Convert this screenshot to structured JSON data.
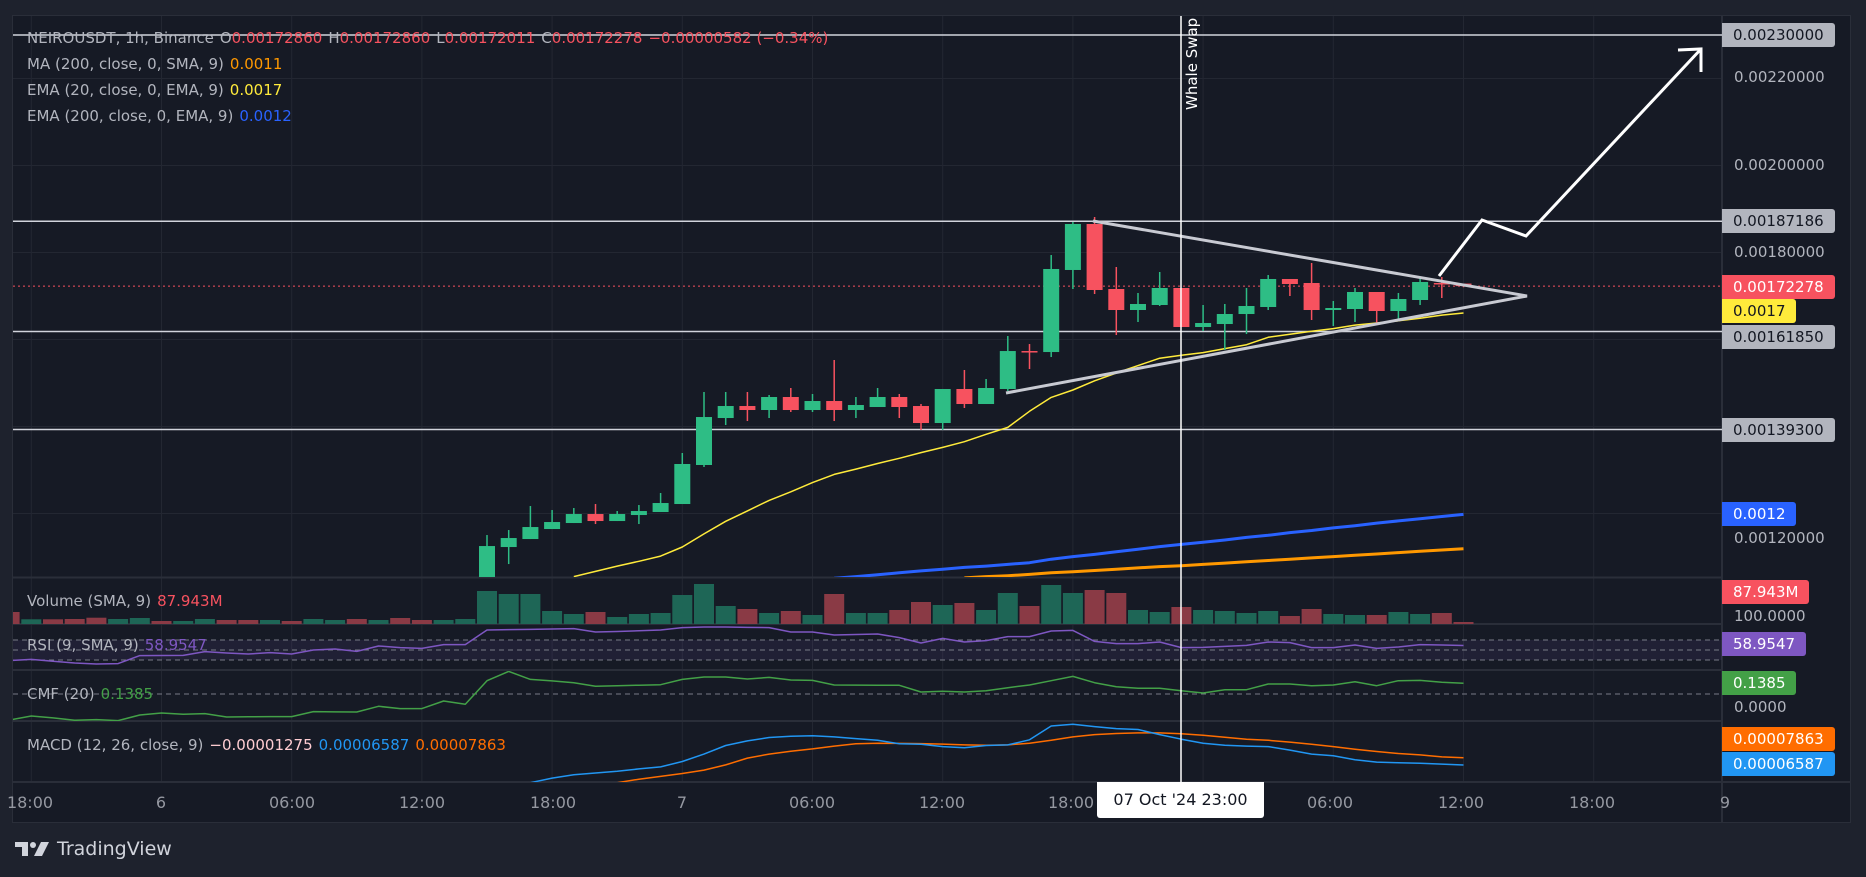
{
  "header": {
    "symbol": "NEIROUSDT, 1h, Binance",
    "o_label": "O",
    "o": "0.00172860",
    "h_label": "H",
    "h": "0.00172860",
    "l_label": "L",
    "l": "0.00172011",
    "c_label": "C",
    "c": "0.00172278",
    "change": "−0.00000582 (−0.34%)"
  },
  "indicators": {
    "ma200": {
      "label": "MA (200, close, 0, SMA, 9)",
      "value": "0.0011",
      "color": "#ff9800"
    },
    "ema20": {
      "label": "EMA (20, close, 0, EMA, 9)",
      "value": "0.0017",
      "color": "#ffeb3b"
    },
    "ema200": {
      "label": "EMA (200, close, 0, EMA, 9)",
      "value": "0.0012",
      "color": "#2962ff"
    },
    "volume": {
      "label": "Volume (SMA, 9)",
      "value": "87.943M"
    },
    "rsi": {
      "label": "RSI (9, SMA, 9)",
      "value": "58.9547",
      "color": "#7e57c2"
    },
    "cmf": {
      "label": "CMF (20)",
      "value": "0.1385",
      "color": "#43a047"
    },
    "macd": {
      "label": "MACD (12, 26, close, 9)",
      "hist": "−0.00001275",
      "macd": "0.00006587",
      "signal": "0.00007863",
      "macd_color": "#2196f3",
      "signal_color": "#ff6d00"
    }
  },
  "annotation": {
    "text": "Whale Swap"
  },
  "price_axis": {
    "ticks": [
      "0.00220000",
      "0.00200000",
      "0.00180000",
      "0.00120000"
    ],
    "rsi_tick": "100.0000",
    "cmf_tick": "0.0000",
    "badges": {
      "level_top": "0.00230000",
      "level_resistance": "0.00187186",
      "last_price": "0.00172278",
      "ema20": "0.0017",
      "level_support": "0.00161850",
      "level_low": "0.00139300",
      "ema200": "0.0012",
      "volume": "87.943M",
      "rsi": "58.9547",
      "cmf": "0.1385",
      "signal": "0.00007863",
      "macd": "0.00006587"
    }
  },
  "time_axis": {
    "ticks": [
      "18:00",
      "6",
      "06:00",
      "12:00",
      "18:00",
      "7",
      "06:00",
      "12:00",
      "18:00",
      "06:00",
      "12:00",
      "18:00",
      "9"
    ],
    "crosshair": "07 Oct '24   23:00"
  },
  "branding": {
    "name": "TradingView"
  },
  "colors": {
    "up": "#2ebd85",
    "down": "#f7525f",
    "vol_up": "#1e6656",
    "vol_down": "#8a3a45",
    "background": "#161a25"
  },
  "chart_data": {
    "type": "candlestick",
    "interval": "1h",
    "horizontal_levels": [
      0.0023,
      0.00187186,
      0.0016185,
      0.001393
    ],
    "last_price": 0.00172278,
    "price_range": [
      0.00105,
      0.00233
    ],
    "ohlc": [
      null,
      null,
      null,
      null,
      null,
      null,
      null,
      null,
      null,
      null,
      null,
      null,
      null,
      null,
      null,
      null,
      null,
      null,
      null,
      null,
      null,
      null,
      [
        0.00103,
        0.0011505,
        0.001025,
        0.0011252
      ],
      [
        0.0011229,
        0.001162,
        0.0010838,
        0.0011436
      ],
      [
        0.0011413,
        0.0012172,
        0.0011413,
        0.0011689
      ],
      [
        0.0011643,
        0.001208,
        0.0011643,
        0.0011804
      ],
      [
        0.0011781,
        0.0012126,
        0.0011781,
        0.0011988
      ],
      [
        0.0011988,
        0.0012218,
        0.0011758,
        0.0011827
      ],
      [
        0.0011827,
        0.0012057,
        0.0011827,
        0.0011988
      ],
      [
        0.0011965,
        0.0012195,
        0.0011758,
        0.0012057
      ],
      [
        0.0012034,
        0.0012471,
        0.0012034,
        0.0012241
      ],
      [
        0.0012218,
        0.0013391,
        0.0012218,
        0.0013138
      ],
      [
        0.0013115,
        0.0014793,
        0.0013069,
        0.0014218
      ],
      [
        0.0014195,
        0.0014793,
        0.0014034,
        0.0014471
      ],
      [
        0.0014471,
        0.0014793,
        0.0014126,
        0.0014379
      ],
      [
        0.0014379,
        0.0014724,
        0.0014195,
        0.0014678
      ],
      [
        0.0014678,
        0.0014885,
        0.0014333,
        0.0014379
      ],
      [
        0.0014379,
        0.0014747,
        0.0014333,
        0.0014586
      ],
      [
        0.0014586,
        0.0015529,
        0.0014126,
        0.0014379
      ],
      [
        0.0014379,
        0.0014678,
        0.0014195,
        0.0014494
      ],
      [
        0.0014448,
        0.0014885,
        0.0014448,
        0.0014678
      ],
      [
        0.0014678,
        0.0014747,
        0.0014195,
        0.0014448
      ],
      [
        0.0014471,
        0.0014517,
        0.001392,
        0.001408
      ],
      [
        0.001408,
        0.0014862,
        0.001392,
        0.0014862
      ],
      [
        0.0014862,
        0.0015299,
        0.0014425,
        0.0014517
      ],
      [
        0.0014517,
        0.0015092,
        0.0014517,
        0.0014885
      ],
      [
        0.0014862,
        0.001608,
        0.0014816,
        0.0015735
      ],
      [
        0.0015735,
        0.0015896,
        0.0015322,
        0.0015712
      ],
      [
        0.0015712,
        0.0017942,
        0.0015597,
        0.0017621
      ],
      [
        0.0017598,
        0.0018701,
        0.0017161,
        0.0018655
      ],
      [
        0.0018655,
        0.0018816,
        0.0017046,
        0.0017138
      ],
      [
        0.0017161,
        0.0017667,
        0.0016103,
        0.0016678
      ],
      [
        0.0016678,
        0.0017069,
        0.0016402,
        0.0016816
      ],
      [
        0.0016793,
        0.0017552,
        0.001677,
        0.0017184
      ],
      [
        0.0017184,
        0.0017184,
        0.0016287,
        0.0016287
      ],
      [
        0.0016287,
        0.0016793,
        0.0016195,
        0.0016379
      ],
      [
        0.0016356,
        0.0016816,
        0.0015758,
        0.0016586
      ],
      [
        0.0016586,
        0.0017184,
        0.0016126,
        0.001677
      ],
      [
        0.0016747,
        0.0017483,
        0.0016678,
        0.0017391
      ],
      [
        0.0017391,
        0.0017391,
        0.0017,
        0.0017276
      ],
      [
        0.0017299,
        0.0017759,
        0.0016448,
        0.0016678
      ],
      [
        0.0016678,
        0.0016885,
        0.001631,
        0.0016724
      ],
      [
        0.0016701,
        0.0017184,
        0.0016402,
        0.0017092
      ],
      [
        0.0017092,
        0.0017092,
        0.0016356,
        0.0016655
      ],
      [
        0.0016655,
        0.0017069,
        0.0016448,
        0.0016931
      ],
      [
        0.0016908,
        0.0017414,
        0.0016793,
        0.0017322
      ],
      [
        0.0017299,
        0.0017437,
        0.0016954,
        0.0017276
      ],
      [
        0.0017286,
        0.0017286,
        0.0017201,
        0.0017228
      ]
    ],
    "volume_millions": [
      528,
      207,
      207,
      220,
      277,
      220,
      264,
      132,
      132,
      220,
      176,
      176,
      176,
      132,
      220,
      176,
      220,
      176,
      264,
      176,
      176,
      220,
      1452,
      1320,
      1320,
      572,
      440,
      528,
      308,
      440,
      484,
      1276,
      1760,
      792,
      660,
      484,
      572,
      396,
      1320,
      484,
      484,
      616,
      968,
      836,
      924,
      616,
      1364,
      792,
      1716,
      1364,
      1496,
      1364,
      616,
      528,
      748,
      616,
      572,
      484,
      572,
      352,
      660,
      440,
      396,
      396,
      528,
      440,
      484,
      87.943
    ],
    "volume_up": [
      0,
      1,
      0,
      0,
      0,
      1,
      1,
      0,
      1,
      1,
      0,
      0,
      1,
      0,
      1,
      1,
      0,
      1,
      0,
      0,
      1,
      1,
      1,
      1,
      1,
      1,
      1,
      0,
      1,
      1,
      1,
      1,
      1,
      1,
      0,
      1,
      0,
      1,
      0,
      1,
      1,
      0,
      0,
      1,
      0,
      1,
      1,
      0,
      1,
      1,
      0,
      0,
      1,
      1,
      0,
      1,
      1,
      1,
      1,
      0,
      0,
      1,
      1,
      0,
      1,
      1,
      0,
      0
    ],
    "ema20": [
      null,
      null,
      null,
      null,
      null,
      null,
      null,
      null,
      null,
      null,
      null,
      null,
      null,
      null,
      null,
      null,
      null,
      null,
      null,
      null,
      null,
      null,
      null,
      null,
      null,
      null,
      0.001055,
      0.001067,
      0.001079,
      0.00109,
      0.001102,
      0.001123,
      0.001153,
      0.001182,
      0.001206,
      0.00123,
      0.00125,
      0.001271,
      0.00129,
      0.001302,
      0.001315,
      0.001327,
      0.00134,
      0.001352,
      0.001365,
      0.001382,
      0.001398,
      0.001435,
      0.001467,
      0.001484,
      0.001505,
      0.001523,
      0.00154,
      0.001557,
      0.001564,
      0.00157,
      0.001579,
      0.001588,
      0.001605,
      0.001612,
      0.001619,
      0.001625,
      0.001633,
      0.001638,
      0.001643,
      0.001649,
      0.001656,
      0.001661
    ],
    "ema200": [
      null,
      null,
      null,
      null,
      null,
      null,
      null,
      null,
      null,
      null,
      null,
      null,
      null,
      null,
      null,
      null,
      null,
      null,
      null,
      null,
      null,
      null,
      null,
      null,
      null,
      null,
      null,
      null,
      null,
      null,
      null,
      null,
      null,
      null,
      null,
      null,
      null,
      null,
      0.001051,
      0.001055,
      0.001059,
      0.001064,
      0.001068,
      0.001072,
      0.001076,
      0.001079,
      0.001083,
      0.001087,
      0.001095,
      0.001101,
      0.001106,
      0.001112,
      0.001118,
      0.001124,
      0.001129,
      0.001134,
      0.001139,
      0.001145,
      0.00115,
      0.001156,
      0.001161,
      0.001167,
      0.001172,
      0.001178,
      0.001183,
      0.001188,
      0.001193,
      0.001198
    ],
    "ma200": [
      null,
      null,
      null,
      null,
      null,
      null,
      null,
      null,
      null,
      null,
      null,
      null,
      null,
      null,
      null,
      null,
      null,
      null,
      null,
      null,
      null,
      null,
      null,
      null,
      null,
      null,
      null,
      null,
      null,
      null,
      null,
      null,
      null,
      null,
      null,
      null,
      null,
      null,
      null,
      null,
      null,
      null,
      null,
      null,
      0.001052,
      0.001055,
      0.001057,
      0.00106,
      0.001064,
      0.001066,
      0.001069,
      0.001072,
      0.001075,
      0.001078,
      0.00108,
      0.001083,
      0.001086,
      0.001089,
      0.001092,
      0.001095,
      0.001098,
      0.001101,
      0.001104,
      0.001107,
      0.00111,
      0.001113,
      0.001116,
      0.001119
    ],
    "rsi": [
      28.7,
      31.3,
      27.5,
      24,
      22,
      22.7,
      38.7,
      39,
      39.3,
      46.7,
      44,
      42,
      44.7,
      42,
      50,
      52,
      47.3,
      58,
      54.7,
      53.3,
      60.7,
      60.7,
      90,
      90.7,
      91.3,
      92,
      92.7,
      86,
      87,
      88.5,
      90,
      94.7,
      96,
      96,
      95.3,
      94.7,
      86,
      86,
      80,
      81,
      82,
      74.7,
      64,
      73.3,
      66,
      68.7,
      76.7,
      76.7,
      88,
      89.3,
      67.3,
      62.7,
      62.7,
      66,
      54.7,
      55.3,
      57.3,
      59.3,
      66,
      64.7,
      54.7,
      54.7,
      60,
      53.3,
      56,
      60.7,
      60,
      58.9547
    ],
    "rsi_bands": [
      70,
      50,
      30
    ],
    "cmf": [
      -0.338,
      -0.286,
      -0.31,
      -0.342,
      -0.333,
      -0.346,
      -0.273,
      -0.247,
      -0.264,
      -0.255,
      -0.299,
      -0.296,
      -0.294,
      -0.294,
      -0.229,
      -0.232,
      -0.234,
      -0.16,
      -0.19,
      -0.19,
      -0.091,
      -0.134,
      0.173,
      0.294,
      0.19,
      0.17,
      0.147,
      0.1,
      0.107,
      0.114,
      0.121,
      0.19,
      0.221,
      0.221,
      0.195,
      0.216,
      0.182,
      0.177,
      0.117,
      0.115,
      0.113,
      0.113,
      0.026,
      0.035,
      0.026,
      0.043,
      0.082,
      0.117,
      0.173,
      0.229,
      0.147,
      0.095,
      0.074,
      0.074,
      0.043,
      0.013,
      0.056,
      0.056,
      0.13,
      0.13,
      0.108,
      0.117,
      0.16,
      0.108,
      0.173,
      0.177,
      0.152,
      0.1385
    ],
    "macd": [
      null,
      null,
      null,
      null,
      null,
      null,
      null,
      null,
      null,
      null,
      null,
      null,
      null,
      null,
      null,
      null,
      null,
      null,
      null,
      null,
      null,
      null,
      null,
      null,
      3.5e-05,
      4.3e-05,
      4.9e-05,
      5.2e-05,
      5.5e-05,
      5.9e-05,
      6.25e-05,
      7.2e-05,
      8.5e-05,
      0.0001,
      0.000108,
      0.000114,
      0.000116,
      0.000117,
      0.000115,
      0.000112,
      0.000109,
      0.000103,
      0.000102,
      9.8e-05,
      9.6e-05,
      0.0001,
      0.000101,
      0.00011,
      0.000134,
      0.000137,
      0.000133,
      0.0001295,
      0.000128,
      0.000119,
      0.000111,
      0.000104,
      0.0001005,
      9.9e-05,
      9.8e-05,
      9.2e-05,
      8.5e-05,
      8.2e-05,
      7.5e-05,
      7.1e-05,
      7e-05,
      6.9e-05,
      6.75e-05,
      6.587e-05
    ],
    "signal": [
      null,
      null,
      null,
      null,
      null,
      null,
      null,
      null,
      null,
      null,
      null,
      null,
      null,
      null,
      null,
      null,
      null,
      null,
      null,
      null,
      null,
      null,
      null,
      null,
      null,
      null,
      null,
      null,
      3.5e-05,
      4.1e-05,
      4.6e-05,
      5.1e-05,
      5.7e-05,
      6.6e-05,
      7.8e-05,
      8.5e-05,
      9e-05,
      9.4e-05,
      9.9e-05,
      0.000103,
      0.0001038,
      0.0001036,
      0.0001033,
      0.0001025,
      0.000101,
      0.0001003,
      0.000101,
      0.000104,
      0.000109,
      0.000115,
      0.000119,
      0.000121,
      0.000122,
      0.000122,
      0.0001205,
      0.000118,
      0.0001145,
      0.000111,
      0.000109,
      0.000106,
      0.000102,
      9.8e-05,
      9.35e-05,
      8.95e-05,
      8.6e-05,
      8.35e-05,
      8e-05,
      7.863e-05
    ]
  }
}
